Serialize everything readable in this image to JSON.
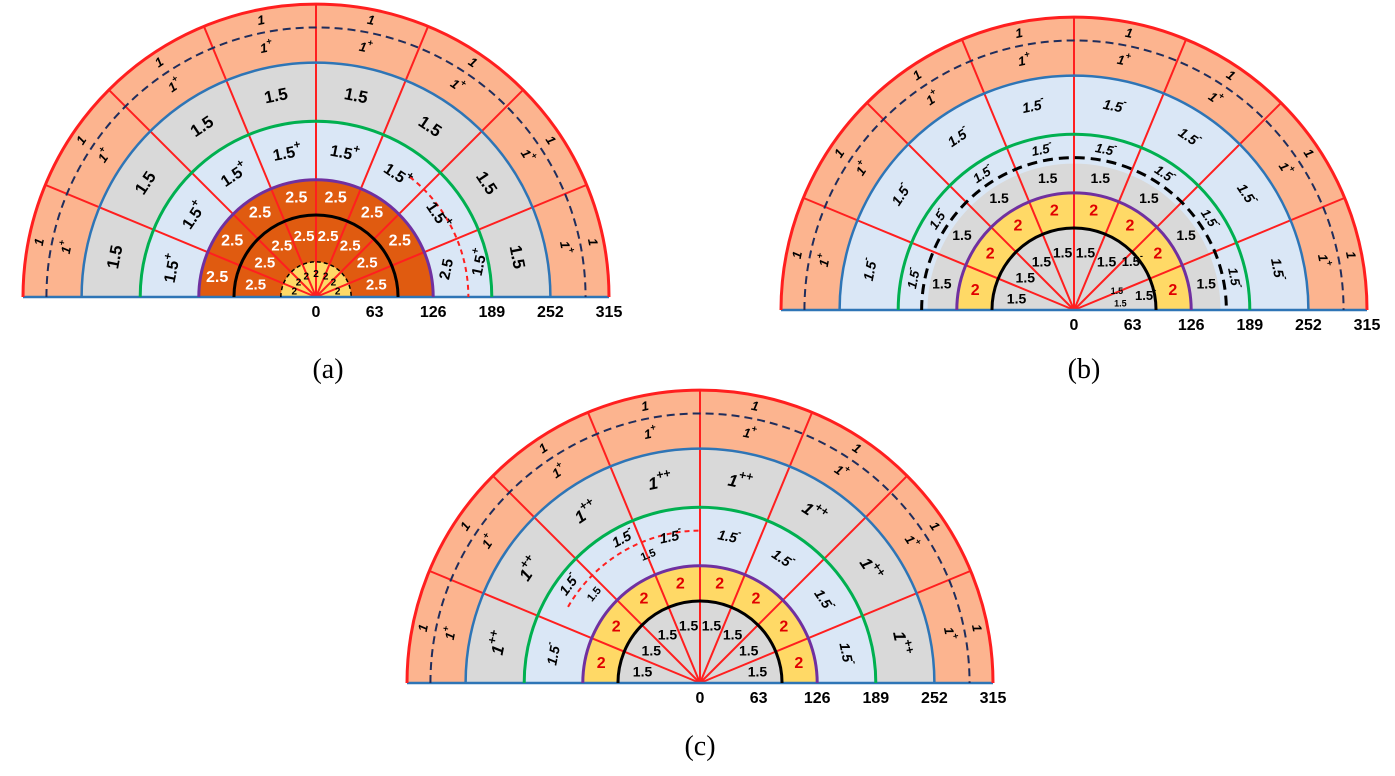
{
  "colors": {
    "outer": "#fcb48f",
    "grey": "#d9d9d9",
    "lightblue": "#dae7f6",
    "darkorange": "#e05b10",
    "yellow": "#ffd966",
    "red": "#ff1f1f",
    "blue": "#2e75b6",
    "green": "#00b050",
    "purple": "#7030a0",
    "navy": "#1f2d5c",
    "black": "#000000"
  },
  "radius_ticks": [
    "0",
    "63",
    "126",
    "189",
    "252",
    "315"
  ],
  "sectors": 8,
  "panels": [
    {
      "id": "a",
      "caption": "(a)",
      "zones": {
        "z0": "2",
        "z1": [
          "2.5",
          "2.5",
          "2.5",
          "2.5",
          "2.5",
          "2.5",
          "2.5",
          "2.5"
        ],
        "z2": [
          "2.5",
          "2.5",
          "2.5",
          "2.5",
          "2.5",
          "2.5",
          "2.5",
          "2.5"
        ],
        "z3": [
          "1.5+",
          "1.5+",
          "1.5+",
          "1.5+",
          "1.5+",
          "1.5+",
          "1.5+",
          "1.5+"
        ],
        "z4": [
          "1.5",
          "1.5",
          "1.5",
          "1.5",
          "1.5",
          "1.5",
          "1.5",
          "1.5"
        ],
        "z5a": [
          "1+",
          "1+",
          "1+",
          "1+",
          "1+",
          "1+",
          "1+",
          "1+"
        ],
        "z5b": [
          "1",
          "1",
          "1",
          "1",
          "1",
          "1",
          "1",
          "1"
        ]
      },
      "notes": [
        "2",
        "2",
        "2",
        "2",
        "2",
        "2",
        "2"
      ],
      "special": [
        "2.5",
        "1.5+"
      ]
    },
    {
      "id": "b",
      "caption": "(b)",
      "zones": {
        "z1": [
          "1.5",
          "1.5",
          "1.5",
          "1.5",
          "1.5",
          "1.5",
          "1.5",
          "1.5"
        ],
        "z2": [
          "2",
          "2",
          "2",
          "2",
          "2",
          "2",
          "2",
          "2"
        ],
        "z3a": [
          "1.5",
          "1.5",
          "1.5",
          "1.5",
          "1.5",
          "1.5",
          "1.5",
          "1.5"
        ],
        "z3b": [
          "1.5-",
          "1.5-",
          "1.5-",
          "1.5-",
          "1.5-",
          "1.5-",
          "1.5-",
          "1.5-"
        ],
        "z4": [
          "1.5-",
          "1.5-",
          "1.5-",
          "1.5-",
          "1.5-",
          "1.5-",
          "1.5-",
          "1.5-"
        ],
        "z5a": [
          "1+",
          "1+",
          "1+",
          "1+",
          "1+",
          "1+",
          "1+",
          "1+"
        ],
        "z5b": [
          "1",
          "1",
          "1",
          "1",
          "1",
          "1",
          "1",
          "1"
        ]
      },
      "specials": [
        "1.5-",
        "1.5-",
        "1.5",
        "1.5"
      ]
    },
    {
      "id": "c",
      "caption": "(c)",
      "zones": {
        "z1": [
          "1.5",
          "1.5",
          "1.5",
          "1.5",
          "1.5",
          "1.5",
          "1.5",
          "1.5"
        ],
        "z2": [
          "2",
          "2",
          "2",
          "2",
          "2",
          "2",
          "2",
          "2"
        ],
        "z3": [
          "1.5-",
          "1.5-",
          "1.5-",
          "1.5-",
          "1.5-",
          "1.5-",
          "1.5-",
          "1.5-"
        ],
        "z4": [
          "1++",
          "1++",
          "1++",
          "1++",
          "1++",
          "1++",
          "1++",
          "1++"
        ],
        "z5a": [
          "1+",
          "1+",
          "1+",
          "1+",
          "1+",
          "1+",
          "1+",
          "1+"
        ],
        "z5b": [
          "1",
          "1",
          "1",
          "1",
          "1",
          "1",
          "1",
          "1"
        ]
      },
      "specials": [
        "1.5",
        "1.5"
      ]
    }
  ]
}
